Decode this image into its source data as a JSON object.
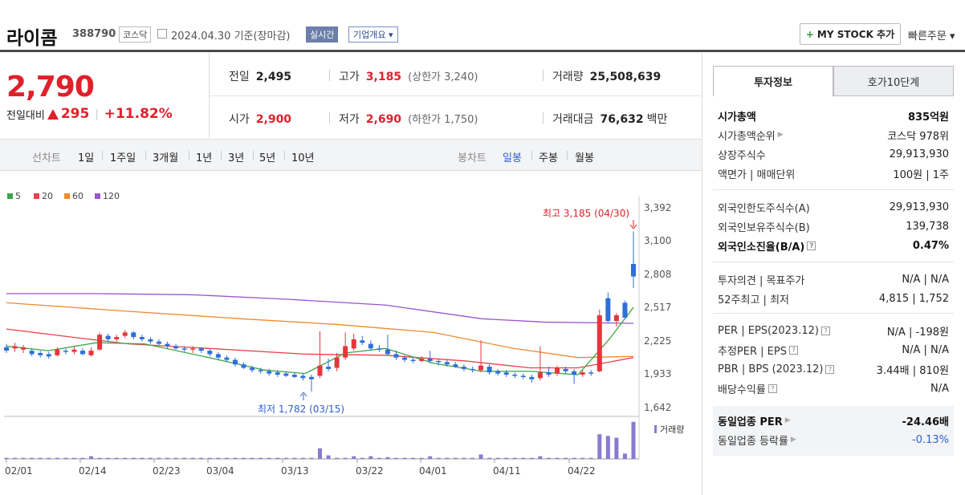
{
  "header": {
    "name": "라이콤",
    "code": "388790",
    "market": "코스닥",
    "date": "2024.04.30 기준(장마감)",
    "realtime": "실시간",
    "corp": "기업개요 ▾",
    "mystock": "MY STOCK 추가",
    "quick": "빠른주문 ▾"
  },
  "price": {
    "current": "2,790",
    "change_label": "전일대비",
    "change": "295",
    "rate": "+11.82%"
  },
  "quotes": {
    "prev_label": "전일",
    "prev": "2,495",
    "high_label": "고가",
    "high": "3,185",
    "upper": "(상한가 3,240)",
    "volume_label": "거래량",
    "volume": "25,508,639",
    "open_label": "시가",
    "open": "2,900",
    "low_label": "저가",
    "low": "2,690",
    "lower": "(하한가 1,750)",
    "amount_label": "거래대금",
    "amount": "76,632",
    "amount_unit": "백만"
  },
  "periods": {
    "line_label": "선차트",
    "line": [
      "1일",
      "1주일",
      "3개월",
      "1년",
      "3년",
      "5년",
      "10년"
    ],
    "candle_label": "봉차트",
    "candle": [
      "일봉",
      "주봉",
      "월봉"
    ]
  },
  "tabs": [
    "투자정보",
    "호가10단계"
  ],
  "info": {
    "mktcap_k": "시가총액",
    "mktcap_v": "835억원",
    "rank_k": "시가총액순위",
    "rank_v": "코스닥 978위",
    "shares_k": "상장주식수",
    "shares_v": "29,913,930",
    "face_k": "액면가 | 매매단위",
    "face_v": "100원 | 1주",
    "flimit_k": "외국인한도주식수(A)",
    "flimit_v": "29,913,930",
    "fhold_k": "외국인보유주식수(B)",
    "fhold_v": "139,738",
    "fratio_k": "외국인소진율(B/A)",
    "fratio_v": "0.47%",
    "opinion_k": "투자의견 | 목표주가",
    "opinion_v": "N/A | N/A",
    "w52_k": "52주최고 | 최저",
    "w52_v": "4,815 | 1,752",
    "per_k": "PER | EPS(2023.12)",
    "per_v": "N/A | -198원",
    "eper_k": "추정PER | EPS",
    "eper_v": "N/A | N/A",
    "pbr_k": "PBR | BPS (2023.12)",
    "pbr_v": "3.44배 | 810원",
    "div_k": "배당수익률",
    "div_v": "N/A",
    "iper_k": "동일업종 PER",
    "iper_v": "-24.46배",
    "irate_k": "동일업종 등락률",
    "irate_v": "-0.13%"
  },
  "chart_data": {
    "type": "candlestick",
    "legend": [
      "5",
      "20",
      "60",
      "120"
    ],
    "legend_colors": [
      "#3aa845",
      "#e8424a",
      "#f08a2c",
      "#9a55cf"
    ],
    "y_ticks": [
      "3,392",
      "3,100",
      "2,808",
      "2,517",
      "2,225",
      "1,933",
      "1,642"
    ],
    "x_ticks": [
      "02/01",
      "02/14",
      "02/23",
      "03/04",
      "03/13",
      "03/22",
      "04/01",
      "04/11",
      "04/22"
    ],
    "volume_label": "거래량",
    "annotations": {
      "high": "최고 3,185 (04/30)",
      "low": "최저 1,782 (03/15)"
    },
    "up_color": "#e8343c",
    "down_color": "#2f6fd8"
  }
}
